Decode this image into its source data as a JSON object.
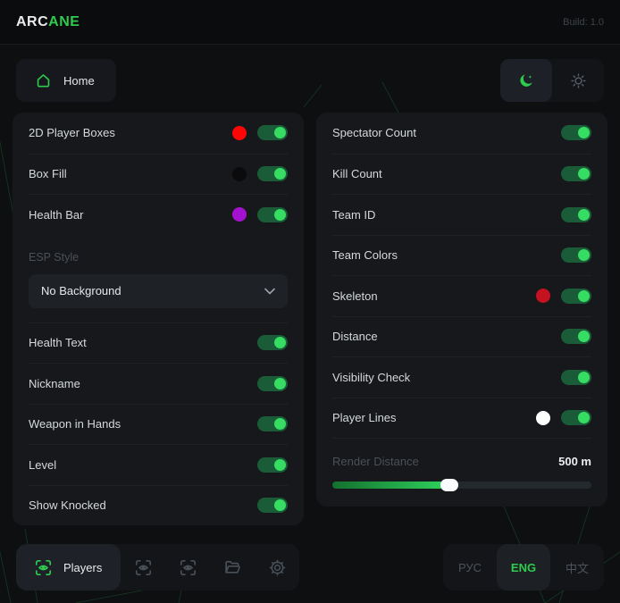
{
  "header": {
    "logo_part1": "ARC",
    "logo_part2": "ANE",
    "build": "Build: 1.0"
  },
  "toolbar": {
    "home_label": "Home",
    "theme": {
      "active": "moon",
      "icons": [
        "moon-icon",
        "sun-icon"
      ]
    }
  },
  "panels": {
    "left": {
      "rows_top": [
        {
          "label": "2D Player Boxes",
          "dot": "#ff0505",
          "toggle": true
        },
        {
          "label": "Box Fill",
          "dot": "#0b0b0e",
          "toggle": true
        },
        {
          "label": "Health Bar",
          "dot": "#a312cf",
          "toggle": true
        }
      ],
      "esp_style_label": "ESP Style",
      "dropdown": {
        "value": "No Background",
        "icon": "chevron-down-icon"
      },
      "rows_bottom": [
        {
          "label": "Health Text",
          "toggle": true
        },
        {
          "label": "Nickname",
          "toggle": true
        },
        {
          "label": "Weapon in Hands",
          "toggle": true
        },
        {
          "label": "Level",
          "toggle": true
        },
        {
          "label": "Show Knocked",
          "toggle": true
        }
      ]
    },
    "right": {
      "rows": [
        {
          "label": "Spectator Count",
          "toggle": true
        },
        {
          "label": "Kill Count",
          "toggle": true
        },
        {
          "label": "Team ID",
          "toggle": true
        },
        {
          "label": "Team Colors",
          "toggle": true
        },
        {
          "label": "Skeleton",
          "dot": "#c41220",
          "toggle": true
        },
        {
          "label": "Distance",
          "toggle": true
        },
        {
          "label": "Visibility Check",
          "toggle": true
        },
        {
          "label": "Player Lines",
          "dot": "#ffffff",
          "toggle": true
        }
      ],
      "slider": {
        "label": "Render Distance",
        "value": "500 m",
        "percent": 45
      }
    }
  },
  "footer": {
    "players_label": "Players",
    "players_icon": "scan-eye-icon",
    "icons": [
      "scan-eye-icon",
      "scan-eye-icon",
      "folder-icon",
      "gear-icon"
    ],
    "languages": [
      {
        "label": "РУС",
        "active": false
      },
      {
        "label": "ENG",
        "active": true
      },
      {
        "label": "中文",
        "active": false
      }
    ]
  },
  "colors": {
    "accent": "#2ecc4e",
    "toggle_track": "#1b5c38",
    "toggle_knob": "#36dd62",
    "panel_bg": "#16181b",
    "inactive_icon": "#4a5058"
  }
}
